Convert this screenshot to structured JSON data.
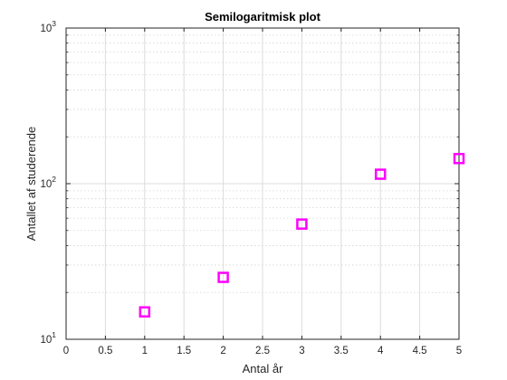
{
  "chart_data": {
    "type": "scatter",
    "title": "Semilogaritmisk plot",
    "xlabel": "Antal år",
    "ylabel": "Antallet af studerende",
    "xlim": [
      0,
      5
    ],
    "ylim": [
      10,
      1000
    ],
    "y_scale": "log",
    "x_ticks": [
      "0",
      "0.5",
      "1",
      "1.5",
      "2",
      "2.5",
      "3",
      "3.5",
      "4",
      "4.5",
      "5"
    ],
    "y_ticks": [
      {
        "base": "10",
        "exp": "1"
      },
      {
        "base": "10",
        "exp": "2"
      },
      {
        "base": "10",
        "exp": "3"
      }
    ],
    "grid": true,
    "marker": "square",
    "marker_color": "#ff00ff",
    "x": [
      1,
      2,
      3,
      4,
      5
    ],
    "y": [
      15,
      25,
      55,
      115,
      145
    ]
  }
}
